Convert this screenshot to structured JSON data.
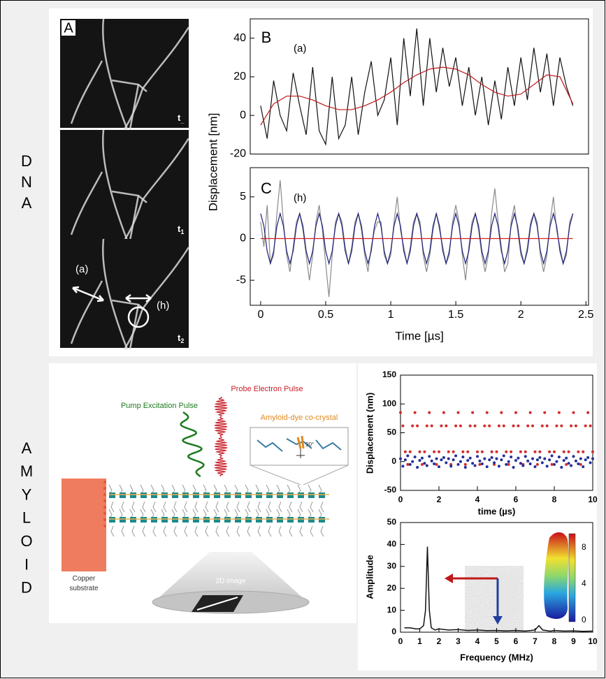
{
  "dna_letters": [
    "D",
    "N",
    "A"
  ],
  "amyloid_letters": [
    "A",
    "M",
    "Y",
    "L",
    "O",
    "I",
    "D"
  ],
  "micrographs": {
    "panel": "A",
    "times": [
      {
        "main": "t",
        "sub": "_"
      },
      {
        "main": "t",
        "sub": "1"
      },
      {
        "main": "t",
        "sub": "2"
      }
    ],
    "marks": [
      "(a)",
      "(h)"
    ]
  },
  "diagram": {
    "probe": "Probe Electron Pulse",
    "pump": "Pump Excitation Pulse",
    "crystal": "Amyloid-dye co-crystal",
    "angle": "90°",
    "substrate": "Copper substrate",
    "image": "2D image"
  },
  "colorbar_ticks": [
    0,
    4,
    8
  ],
  "chart_data": [
    {
      "type": "line",
      "label": "B",
      "annotation": "(a)",
      "ylabel": "Displacement [nm]",
      "xlim": [
        -0.08,
        2.52
      ],
      "ylim": [
        -20,
        50
      ],
      "yticks": [
        -20,
        0,
        20,
        40
      ],
      "series": [
        {
          "color": "#111111",
          "x": [
            0,
            0.05,
            0.1,
            0.15,
            0.2,
            0.25,
            0.3,
            0.35,
            0.4,
            0.45,
            0.5,
            0.55,
            0.6,
            0.65,
            0.7,
            0.75,
            0.8,
            0.85,
            0.9,
            0.95,
            1,
            1.05,
            1.1,
            1.15,
            1.2,
            1.25,
            1.3,
            1.35,
            1.4,
            1.45,
            1.5,
            1.55,
            1.6,
            1.65,
            1.7,
            1.75,
            1.8,
            1.85,
            1.9,
            1.95,
            2,
            2.05,
            2.1,
            2.15,
            2.2,
            2.25,
            2.3,
            2.35,
            2.4
          ],
          "values": [
            5,
            -12,
            18,
            0,
            -8,
            22,
            5,
            -10,
            25,
            -8,
            -15,
            20,
            -12,
            -5,
            20,
            -10,
            12,
            28,
            0,
            8,
            30,
            -5,
            40,
            10,
            45,
            5,
            40,
            12,
            35,
            15,
            30,
            5,
            25,
            0,
            20,
            -5,
            18,
            -2,
            25,
            5,
            30,
            8,
            35,
            12,
            32,
            5,
            30,
            15,
            5
          ]
        },
        {
          "color": "#c0181c",
          "x": [
            0,
            0.1,
            0.2,
            0.3,
            0.4,
            0.5,
            0.6,
            0.7,
            0.8,
            0.9,
            1,
            1.1,
            1.2,
            1.3,
            1.4,
            1.5,
            1.6,
            1.7,
            1.8,
            1.9,
            2,
            2.1,
            2.2,
            2.3,
            2.4
          ],
          "values": [
            -5,
            6,
            10,
            10,
            8,
            5,
            3,
            3,
            5,
            8,
            12,
            17,
            21,
            24,
            25,
            24,
            21,
            16,
            12,
            10,
            11,
            16,
            21,
            20,
            6
          ]
        }
      ]
    },
    {
      "type": "line",
      "label": "C",
      "annotation": "(h)",
      "xlabel": "Time [µs]",
      "xlim": [
        -0.08,
        2.52
      ],
      "ylim": [
        -8,
        8.5
      ],
      "xticks": [
        0,
        0.5,
        1,
        1.5,
        2,
        2.5
      ],
      "yticks": [
        -5,
        0,
        5
      ],
      "x": [
        0,
        0.025,
        0.05,
        0.075,
        0.1,
        0.125,
        0.15,
        0.175,
        0.2,
        0.225,
        0.25,
        0.275,
        0.3,
        0.325,
        0.35,
        0.375,
        0.4,
        0.425,
        0.45,
        0.475,
        0.5,
        0.525,
        0.55,
        0.575,
        0.6,
        0.625,
        0.65,
        0.675,
        0.7,
        0.725,
        0.75,
        0.775,
        0.8,
        0.825,
        0.85,
        0.875,
        0.9,
        0.925,
        0.95,
        0.975,
        1,
        1.025,
        1.05,
        1.075,
        1.1,
        1.125,
        1.15,
        1.175,
        1.2,
        1.225,
        1.25,
        1.275,
        1.3,
        1.325,
        1.35,
        1.375,
        1.4,
        1.425,
        1.45,
        1.475,
        1.5,
        1.525,
        1.55,
        1.575,
        1.6,
        1.625,
        1.65,
        1.675,
        1.7,
        1.725,
        1.75,
        1.775,
        1.8,
        1.825,
        1.85,
        1.875,
        1.9,
        1.925,
        1.95,
        1.975,
        2,
        2.025,
        2.05,
        2.075,
        2.1,
        2.125,
        2.15,
        2.175,
        2.2,
        2.225,
        2.25,
        2.275,
        2.3,
        2.325,
        2.35,
        2.375,
        2.4
      ],
      "series": [
        {
          "color": "#8a8a8a",
          "values": [
            2,
            -1,
            4,
            -3,
            -2,
            3,
            7,
            2,
            -2,
            -4,
            -1,
            2,
            3,
            1,
            -2,
            -5,
            -2,
            2,
            4,
            1,
            -3,
            -7,
            -2,
            2,
            3,
            2,
            -1,
            -3,
            -1,
            2,
            3,
            1,
            -2,
            -4,
            -1,
            1,
            2,
            2,
            -2,
            -3,
            -2,
            2,
            5,
            1,
            -1,
            -3,
            -1,
            2,
            3,
            2,
            -2,
            -4,
            -2,
            1,
            3,
            1,
            -1,
            -3,
            -2,
            2,
            4,
            2,
            -2,
            -5,
            -1,
            2,
            3,
            1,
            -2,
            -4,
            -2,
            3,
            6,
            2,
            -1,
            -4,
            -3,
            2,
            4,
            1,
            -2,
            -3,
            -1,
            2,
            3,
            2,
            -2,
            -4,
            -2,
            2,
            5,
            1,
            -1,
            -3,
            -2,
            2,
            3
          ]
        },
        {
          "color": "#1c1f78",
          "values": [
            3,
            1.5,
            -1.5,
            -3,
            -1.5,
            1.5,
            3,
            1.5,
            -1.5,
            -3,
            -1.5,
            1.5,
            3,
            1.5,
            -1.5,
            -3,
            -1.5,
            1.5,
            3,
            1.5,
            -1.5,
            -3,
            -1.5,
            1.5,
            3,
            1.5,
            -1.5,
            -3,
            -1.5,
            1.5,
            3,
            1.5,
            -1.5,
            -3,
            -1.5,
            1.5,
            3,
            1.5,
            -1.5,
            -3,
            -1.5,
            1.5,
            3,
            1.5,
            -1.5,
            -3,
            -1.5,
            1.5,
            3,
            1.5,
            -1.5,
            -3,
            -1.5,
            1.5,
            3,
            1.5,
            -1.5,
            -3,
            -1.5,
            1.5,
            3,
            1.5,
            -1.5,
            -3,
            -1.5,
            1.5,
            3,
            1.5,
            -1.5,
            -3,
            -1.5,
            1.5,
            3,
            1.5,
            -1.5,
            -3,
            -1.5,
            1.5,
            3,
            1.5,
            -1.5,
            -3,
            -1.5,
            1.5,
            3,
            1.5,
            -1.5,
            -3,
            -1.5,
            1.5,
            3,
            1.5,
            -1.5,
            -3,
            -1.5,
            1.5,
            3
          ]
        },
        {
          "color": "#d21f1f",
          "x": [
            0,
            2.4
          ],
          "values": [
            0,
            0
          ]
        }
      ]
    },
    {
      "type": "scatter",
      "xlabel": "time (µs)",
      "ylabel": "Displacement (nm)",
      "xlim": [
        0,
        10
      ],
      "ylim": [
        -50,
        150
      ],
      "xticks": [
        0,
        2,
        4,
        6,
        8,
        10
      ],
      "yticks": [
        -50,
        0,
        50,
        100,
        150
      ],
      "x": [
        0,
        0.125,
        0.25,
        0.375,
        0.5,
        0.625,
        0.75,
        0.875,
        1,
        1.125,
        1.25,
        1.375,
        1.5,
        1.625,
        1.75,
        1.875,
        2,
        2.125,
        2.25,
        2.375,
        2.5,
        2.625,
        2.75,
        2.875,
        3,
        3.125,
        3.25,
        3.375,
        3.5,
        3.625,
        3.75,
        3.875,
        4,
        4.125,
        4.25,
        4.375,
        4.5,
        4.625,
        4.75,
        4.875,
        5,
        5.125,
        5.25,
        5.375,
        5.5,
        5.625,
        5.75,
        5.875,
        6,
        6.125,
        6.25,
        6.375,
        6.5,
        6.625,
        6.75,
        6.875,
        7,
        7.125,
        7.25,
        7.375,
        7.5,
        7.625,
        7.75,
        7.875,
        8,
        8.125,
        8.25,
        8.375,
        8.5,
        8.625,
        8.75,
        8.875,
        9,
        9.125,
        9.25,
        9.375,
        9.5,
        9.625,
        9.75,
        9.875,
        10
      ],
      "series": [
        {
          "color": "#d42a2a",
          "values": [
            85,
            62,
            17,
            -5,
            17,
            62,
            85,
            62,
            17,
            -5,
            17,
            62,
            85,
            62,
            17,
            -5,
            17,
            62,
            85,
            62,
            17,
            -5,
            17,
            62,
            85,
            62,
            17,
            -5,
            17,
            62,
            85,
            62,
            17,
            -5,
            17,
            62,
            85,
            62,
            17,
            -5,
            17,
            62,
            85,
            62,
            17,
            -5,
            17,
            62,
            85,
            62,
            17,
            -5,
            17,
            62,
            85,
            62,
            17,
            -5,
            17,
            62,
            85,
            62,
            17,
            -5,
            17,
            62,
            85,
            62,
            17,
            -5,
            17,
            62,
            85,
            62,
            17,
            -5,
            17,
            62,
            85,
            62,
            17
          ]
        },
        {
          "color": "#22309a",
          "values": [
            5,
            -8,
            3,
            10,
            -5,
            0,
            8,
            -10,
            2,
            6,
            -3,
            -7,
            9,
            1,
            -4,
            5,
            -9,
            3,
            7,
            -2,
            5,
            -8,
            3,
            10,
            -5,
            0,
            8,
            -10,
            2,
            6,
            -3,
            -7,
            9,
            1,
            -4,
            5,
            -9,
            3,
            7,
            -2,
            5,
            -8,
            3,
            10,
            -5,
            0,
            8,
            -10,
            2,
            6,
            -3,
            -7,
            9,
            1,
            -4,
            5,
            -9,
            3,
            7,
            -2,
            5,
            -8,
            3,
            10,
            -5,
            0,
            8,
            -10,
            2,
            6,
            -3,
            -7,
            9,
            1,
            -4,
            5,
            -9,
            3,
            7,
            -2,
            5
          ]
        }
      ]
    },
    {
      "type": "line",
      "xlabel": "Frequency (MHz)",
      "ylabel": "Amplitude",
      "xlim": [
        0,
        10
      ],
      "ylim": [
        0,
        50
      ],
      "xticks": [
        0,
        1,
        2,
        3,
        4,
        5,
        6,
        7,
        8,
        9,
        10
      ],
      "yticks": [
        0,
        10,
        20,
        30,
        40,
        50
      ],
      "x": [
        0.2,
        0.5,
        0.8,
        1,
        1.2,
        1.3,
        1.4,
        1.5,
        1.6,
        1.8,
        2,
        2.5,
        3,
        3.5,
        4,
        4.5,
        5,
        5.5,
        6,
        6.5,
        7,
        7.2,
        7.4,
        7.8,
        8,
        8.5,
        9,
        9.5,
        10
      ],
      "series": [
        {
          "color": "#111111",
          "values": [
            2,
            2,
            1.5,
            1.5,
            3,
            10,
            39,
            10,
            2,
            1,
            1.5,
            1,
            1.2,
            0.8,
            1,
            0.7,
            0.8,
            0.6,
            0.8,
            0.5,
            1,
            3,
            1,
            0.5,
            0.8,
            0.5,
            0.6,
            0.4,
            0.5
          ]
        }
      ]
    }
  ]
}
